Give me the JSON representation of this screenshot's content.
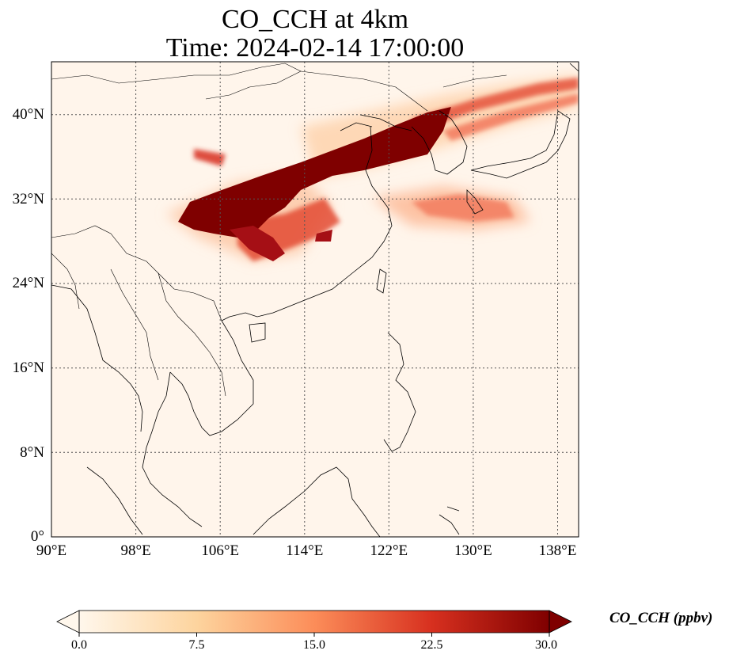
{
  "title_line1": "CO_CCH at 4km",
  "title_line2": "Time: 2024-02-14 17:00:00",
  "map": {
    "extent": {
      "lon_min": 90,
      "lon_max": 140,
      "lat_min": 0,
      "lat_max": 45
    },
    "lat_ticks": [
      {
        "value": 40,
        "label": "40°N"
      },
      {
        "value": 32,
        "label": "32°N"
      },
      {
        "value": 24,
        "label": "24°N"
      },
      {
        "value": 16,
        "label": "16°N"
      },
      {
        "value": 8,
        "label": "8°N"
      },
      {
        "value": 0,
        "label": "0°"
      }
    ],
    "lon_ticks": [
      {
        "value": 90,
        "label": "90°E"
      },
      {
        "value": 98,
        "label": "98°E"
      },
      {
        "value": 106,
        "label": "106°E"
      },
      {
        "value": 114,
        "label": "114°E"
      },
      {
        "value": 122,
        "label": "122°E"
      },
      {
        "value": 130,
        "label": "130°E"
      },
      {
        "value": 138,
        "label": "138°E"
      }
    ],
    "gridlines": "dotted",
    "background_color": "#fff5eb"
  },
  "colorbar": {
    "label": "CO_CCH (ppbv)",
    "min": 0.0,
    "max": 30.0,
    "extend": "both",
    "colormap": "OrRd",
    "ticks": [
      "0.0",
      "7.5",
      "15.0",
      "22.5",
      "30.0"
    ]
  }
}
